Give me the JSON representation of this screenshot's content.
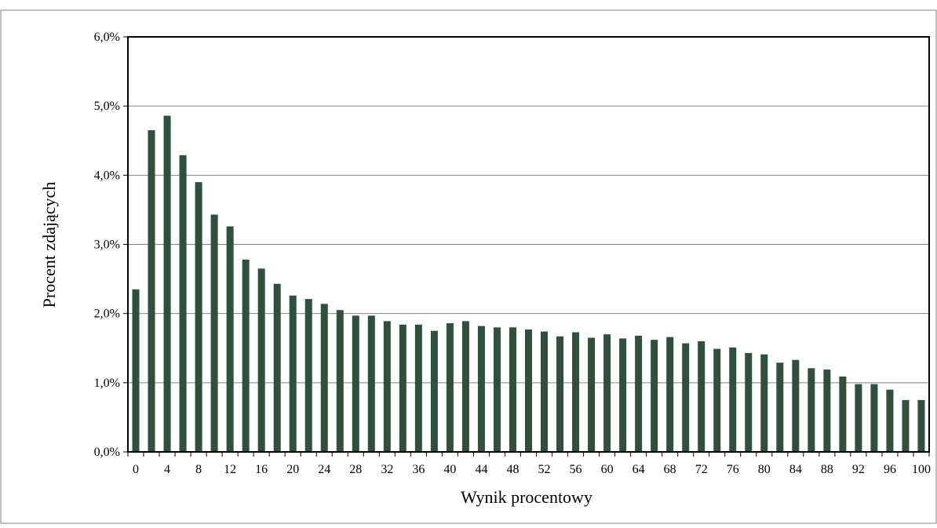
{
  "chart_data": {
    "type": "bar",
    "title": "",
    "xlabel": "Wynik procentowy",
    "ylabel": "Procent zdających",
    "ylim": [
      0,
      6.0
    ],
    "y_ticks": [
      "0,0%",
      "1,0%",
      "2,0%",
      "3,0%",
      "4,0%",
      "5,0%",
      "6,0%"
    ],
    "grid": true,
    "legend": "none",
    "bar_color": "#2f4f3f",
    "categories": [
      0,
      2,
      4,
      6,
      8,
      10,
      12,
      14,
      16,
      18,
      20,
      22,
      24,
      26,
      28,
      30,
      32,
      34,
      36,
      38,
      40,
      42,
      44,
      46,
      48,
      50,
      52,
      54,
      56,
      58,
      60,
      62,
      64,
      66,
      68,
      70,
      72,
      74,
      76,
      78,
      80,
      82,
      84,
      86,
      88,
      90,
      92,
      94,
      96,
      98,
      100
    ],
    "x_tick_labels": [
      "0",
      "4",
      "8",
      "12",
      "16",
      "20",
      "24",
      "28",
      "32",
      "36",
      "40",
      "44",
      "48",
      "52",
      "56",
      "60",
      "64",
      "68",
      "72",
      "76",
      "80",
      "84",
      "88",
      "92",
      "96",
      "100"
    ],
    "values": [
      2.35,
      4.65,
      4.86,
      4.29,
      3.9,
      3.43,
      3.26,
      2.78,
      2.65,
      2.43,
      2.26,
      2.21,
      2.14,
      2.05,
      1.97,
      1.97,
      1.89,
      1.84,
      1.84,
      1.75,
      1.86,
      1.89,
      1.82,
      1.8,
      1.8,
      1.77,
      1.74,
      1.67,
      1.73,
      1.65,
      1.7,
      1.64,
      1.68,
      1.62,
      1.66,
      1.57,
      1.6,
      1.49,
      1.51,
      1.43,
      1.41,
      1.29,
      1.33,
      1.21,
      1.19,
      1.09,
      0.98,
      0.98,
      0.9,
      0.75,
      0.75
    ]
  }
}
